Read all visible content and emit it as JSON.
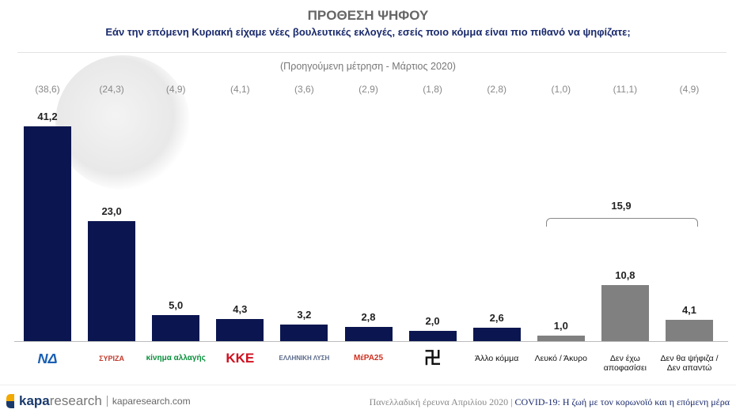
{
  "header": {
    "title": "ΠΡΟΘΕΣΗ ΨΗΦΟΥ",
    "question": "Εάν την επόμενη Κυριακή είχαμε νέες βουλευτικές εκλογές, εσείς ποιο κόμμα είναι πιο πιθανό να ψηφίζατε;",
    "previous_note": "(Προηγούμενη μέτρηση - Μάρτιος 2020)"
  },
  "chart_data": {
    "type": "bar",
    "title": "ΠΡΟΘΕΣΗ ΨΗΦΟΥ",
    "categories": [
      "ΝΔ",
      "ΣΥΡΙΖΑ",
      "Κίνημα Αλλαγής",
      "ΚΚΕ",
      "Ελληνική Λύση",
      "ΜέΡΑ25",
      "Χρυσή Αυγή",
      "Άλλο κόμμα",
      "Λευκό / Άκυρο",
      "Δεν έχω αποφασίσει",
      "Δεν θα ψήφιζα / Δεν απαντώ"
    ],
    "category_labels": [
      "ΝΔ",
      "ΣΥΡΙΖΑ",
      "κίνημα αλλαγής",
      "ΚΚΕ",
      "ΕΛΛΗΝΙΚΗ ΛΥΣΗ",
      "ΜέΡΑ25",
      "",
      "Άλλο κόμμα",
      "Λευκό / Άκυρο",
      "Δεν έχω αποφασίσει",
      "Δεν θα ψήφιζα / Δεν απαντώ"
    ],
    "values": [
      41.2,
      23.0,
      5.0,
      4.3,
      3.2,
      2.8,
      2.0,
      2.6,
      1.0,
      10.8,
      4.1
    ],
    "value_labels": [
      "41,2",
      "23,0",
      "5,0",
      "4,3",
      "3,2",
      "2,8",
      "2,0",
      "2,6",
      "1,0",
      "10,8",
      "4,1"
    ],
    "previous": [
      "(38,6)",
      "(24,3)",
      "(4,9)",
      "(4,1)",
      "(3,6)",
      "(2,9)",
      "(1,8)",
      "(2,8)",
      "(1,0)",
      "(11,1)",
      "(4,9)"
    ],
    "colors": [
      "#0b1650",
      "#0b1650",
      "#0b1650",
      "#0b1650",
      "#0b1650",
      "#0b1650",
      "#0b1650",
      "#0b1650",
      "#808080",
      "#808080",
      "#808080"
    ],
    "group_total": {
      "label": "15,9",
      "value": 15.9,
      "members": [
        "Λευκό / Άκυρο",
        "Δεν έχω αποφασίσει",
        "Δεν θα ψήφιζα / Δεν απαντώ"
      ]
    },
    "ylim": [
      0,
      42
    ],
    "grid": false
  },
  "footer": {
    "brand_a": "kapa",
    "brand_b": "research",
    "site": "kaparesearch.com",
    "survey": "Πανελλαδική έρευνα Απριλίου 2020 |",
    "study": "COVID-19: Η ζωή με τον κορωνοϊό και η επόμενη μέρα"
  }
}
